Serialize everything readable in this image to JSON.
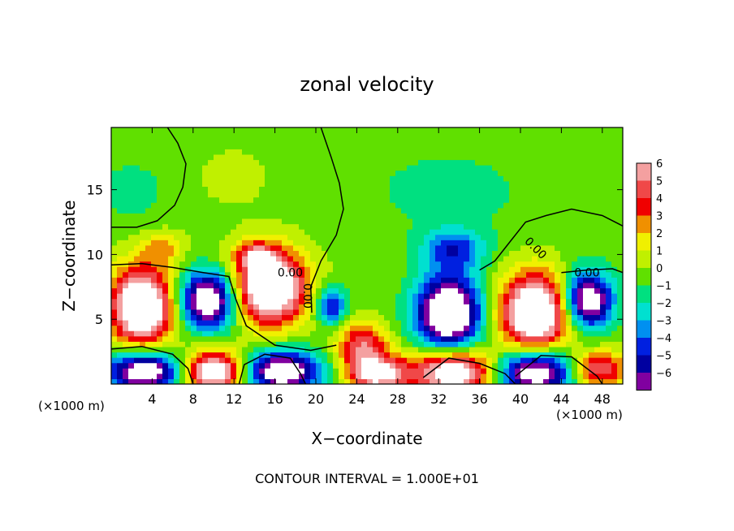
{
  "chart_data": {
    "type": "heatmap",
    "title": "zonal velocity",
    "xlabel": "X−coordinate",
    "ylabel": "Z−coordinate",
    "x_units_left": "(×1000 m)",
    "x_units_right": "(×1000 m)",
    "footer": "CONTOUR INTERVAL = 1.000E+01",
    "xlim": [
      0,
      50
    ],
    "ylim": [
      0,
      19.8
    ],
    "x_ticks": [
      4,
      8,
      12,
      16,
      20,
      24,
      28,
      32,
      36,
      40,
      44,
      48
    ],
    "y_ticks": [
      5,
      10,
      15
    ],
    "colorbar": {
      "levels": [
        6,
        5,
        4,
        3,
        2,
        1,
        0,
        -1,
        -2,
        -3,
        -4,
        -5,
        -6
      ],
      "labels": [
        "6",
        "5",
        "4",
        "3",
        "2",
        "1",
        "0",
        "−1",
        "−2",
        "−3",
        "−4",
        "−5",
        "−6"
      ],
      "colors": [
        "#f4a0a0",
        "#f04848",
        "#f00000",
        "#f09000",
        "#f0f000",
        "#c0f000",
        "#60e000",
        "#00e080",
        "#00e0d0",
        "#0090f0",
        "#0020e0",
        "#0000a0",
        "#8000a0"
      ]
    },
    "contour_labels": [
      "0.00",
      "0.00",
      "0.00",
      "0.00"
    ],
    "blobs": [
      {
        "x": 3.0,
        "z": 6.0,
        "rx": 3.0,
        "ry": 3.0,
        "v": 10
      },
      {
        "x": 9.5,
        "z": 6.5,
        "rx": 2.8,
        "ry": 2.2,
        "v": -9
      },
      {
        "x": 15.5,
        "z": 7.5,
        "rx": 3.5,
        "ry": 2.8,
        "v": 10
      },
      {
        "x": 5.0,
        "z": 10.5,
        "rx": 2.0,
        "ry": 1.2,
        "v": 2.5
      },
      {
        "x": 14.0,
        "z": 10.0,
        "rx": 2.0,
        "ry": 1.0,
        "v": 3.5
      },
      {
        "x": 21.5,
        "z": 6.0,
        "rx": 1.5,
        "ry": 1.5,
        "v": -5
      },
      {
        "x": 24.5,
        "z": 3.0,
        "rx": 2.5,
        "ry": 1.8,
        "v": 5
      },
      {
        "x": 33.0,
        "z": 5.5,
        "rx": 3.2,
        "ry": 3.0,
        "v": -10
      },
      {
        "x": 33.5,
        "z": 10.5,
        "rx": 3.0,
        "ry": 1.5,
        "v": -4
      },
      {
        "x": 41.5,
        "z": 5.5,
        "rx": 3.5,
        "ry": 3.0,
        "v": 10
      },
      {
        "x": 46.5,
        "z": 6.5,
        "rx": 2.5,
        "ry": 2.2,
        "v": -9
      },
      {
        "x": 3.5,
        "z": 1.0,
        "rx": 4.0,
        "ry": 1.6,
        "v": -9
      },
      {
        "x": 10.0,
        "z": 1.0,
        "rx": 3.5,
        "ry": 1.6,
        "v": 9
      },
      {
        "x": 16.5,
        "z": 1.0,
        "rx": 4.0,
        "ry": 1.6,
        "v": -9
      },
      {
        "x": 26.0,
        "z": 0.8,
        "rx": 3.0,
        "ry": 1.4,
        "v": 7
      },
      {
        "x": 33.5,
        "z": 1.0,
        "rx": 4.0,
        "ry": 1.8,
        "v": 9
      },
      {
        "x": 41.5,
        "z": 1.0,
        "rx": 4.0,
        "ry": 1.8,
        "v": -9
      },
      {
        "x": 47.5,
        "z": 1.2,
        "rx": 2.8,
        "ry": 1.4,
        "v": 6
      },
      {
        "x": 2.0,
        "z": 15.0,
        "rx": 3.5,
        "ry": 2.5,
        "v": -1.2
      },
      {
        "x": 33.0,
        "z": 15.0,
        "rx": 10.0,
        "ry": 4.0,
        "v": -1.0
      },
      {
        "x": 12.0,
        "z": 16.0,
        "rx": 4.0,
        "ry": 2.5,
        "v": 0.6
      }
    ]
  }
}
